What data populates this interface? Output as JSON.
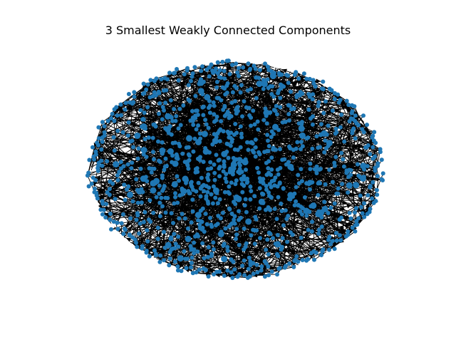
{
  "figure": {
    "title": "3 Smallest Weakly Connected Components"
  },
  "graph": {
    "directed": true,
    "node_color": "#1f77b4",
    "edge_color": "#000000",
    "background": "#ffffff"
  }
}
